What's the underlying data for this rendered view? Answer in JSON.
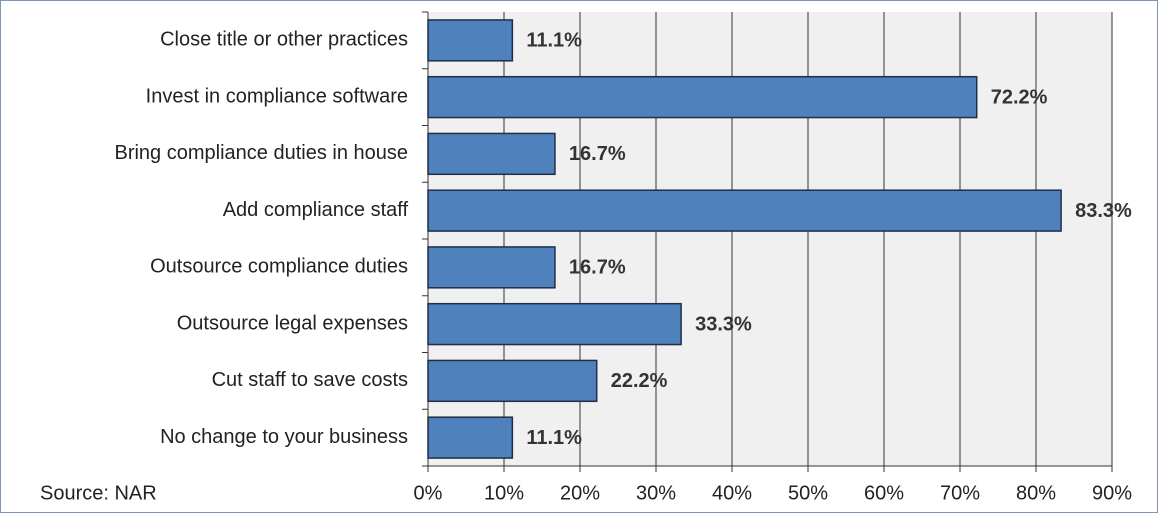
{
  "chart_data": {
    "type": "bar",
    "orientation": "horizontal",
    "categories": [
      "Close title or other practices",
      "Invest in compliance software",
      "Bring compliance duties in house",
      "Add compliance staff",
      "Outsource compliance duties",
      "Outsource legal expenses",
      "Cut staff to save costs",
      "No change to your business"
    ],
    "values": [
      11.1,
      72.2,
      16.7,
      83.3,
      16.7,
      33.3,
      22.2,
      11.1
    ],
    "value_labels": [
      "11.1%",
      "72.2%",
      "16.7%",
      "83.3%",
      "16.7%",
      "33.3%",
      "22.2%",
      "11.1%"
    ],
    "color": "#4f81bd",
    "xlim": [
      0,
      90
    ],
    "xticks": [
      {
        "value": 0,
        "label": "0%"
      },
      {
        "value": 10,
        "label": "10%"
      },
      {
        "value": 20,
        "label": "20%"
      },
      {
        "value": 30,
        "label": "30%"
      },
      {
        "value": 40,
        "label": "40%"
      },
      {
        "value": 50,
        "label": "50%"
      },
      {
        "value": 60,
        "label": "60%"
      },
      {
        "value": 70,
        "label": "70%"
      },
      {
        "value": 80,
        "label": "80%"
      },
      {
        "value": 90,
        "label": "90%"
      }
    ],
    "grid": true,
    "source": "Source: NAR"
  }
}
